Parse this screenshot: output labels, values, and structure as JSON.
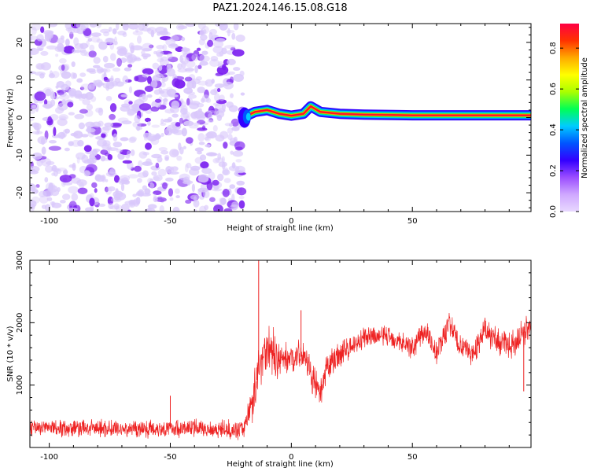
{
  "figure": {
    "title": "PAZ1.2024.146.15.08.G18"
  },
  "colors": {
    "snr_line": "#ee2222",
    "noise_purple": "#7b1ff0",
    "noise_light": "#d9c8fb",
    "axis": "#000000",
    "colormap": [
      "#e8d8ff",
      "#cfa8ff",
      "#9b4dff",
      "#3300ff",
      "#0055ff",
      "#00ccff",
      "#00ff55",
      "#aaff00",
      "#ffff00",
      "#ffaa00",
      "#ff3300",
      "#ff0044"
    ]
  },
  "chart_data": [
    {
      "type": "heatmap",
      "name": "spectrogram",
      "xlabel": "Height of straight line (km)",
      "ylabel": "Frequency (Hz)",
      "xlim": [
        -108,
        99
      ],
      "ylim": [
        -25,
        25
      ],
      "xticks": [
        -100,
        -50,
        0,
        50
      ],
      "yticks": [
        -20,
        -10,
        0,
        10,
        20
      ],
      "noise_region_x": [
        -108,
        -20
      ],
      "signal_track": {
        "x": [
          -20,
          -15,
          -10,
          -5,
          0,
          5,
          8,
          12,
          20,
          30,
          50,
          70,
          99
        ],
        "y": [
          0,
          1.5,
          2.0,
          1.0,
          0.5,
          1.0,
          3.0,
          1.5,
          1.0,
          0.8,
          0.6,
          0.6,
          0.6
        ]
      },
      "colorbar": {
        "label": "Normalized spectral amplitude",
        "ticks": [
          "0.0",
          "0.2",
          "0.4",
          "0.6",
          "0.8"
        ],
        "range": [
          0,
          0.92
        ]
      },
      "grid": false
    },
    {
      "type": "line",
      "name": "snr",
      "xlabel": "Height of straight line (km)",
      "ylabel": "SNR (10 * v/v)",
      "xlim": [
        -108,
        99
      ],
      "ylim": [
        0,
        3000
      ],
      "xticks": [
        -100,
        -50,
        0,
        50
      ],
      "yticks": [
        1000,
        2000,
        3000
      ],
      "series": [
        {
          "color": "#ee2222",
          "envelope": {
            "x": [
              -108,
              -70,
              -40,
              -20,
              -16,
              -12,
              -10,
              -5,
              0,
              5,
              12,
              15,
              20,
              30,
              40,
              50,
              55,
              60,
              65,
              70,
              75,
              80,
              85,
              90,
              95,
              99
            ],
            "y": [
              320,
              300,
              310,
              280,
              750,
              1500,
              1600,
              1400,
              1450,
              1500,
              800,
              1300,
              1500,
              1750,
              1800,
              1600,
              1900,
              1500,
              2000,
              1600,
              1500,
              1900,
              1700,
              1600,
              1800,
              2000
            ],
            "spread": [
              170,
              170,
              170,
              170,
              400,
              500,
              550,
              350,
              250,
              300,
              300,
              300,
              250,
              200,
              200,
              220,
              250,
              250,
              250,
              250,
              220,
              250,
              250,
              250,
              280,
              280
            ]
          },
          "spikes": [
            {
              "x": -13.5,
              "y": 3000
            },
            {
              "x": -50,
              "y": 830
            },
            {
              "x": 4,
              "y": 2200
            },
            {
              "x": 96,
              "y": 900
            }
          ]
        }
      ],
      "grid": false
    }
  ]
}
